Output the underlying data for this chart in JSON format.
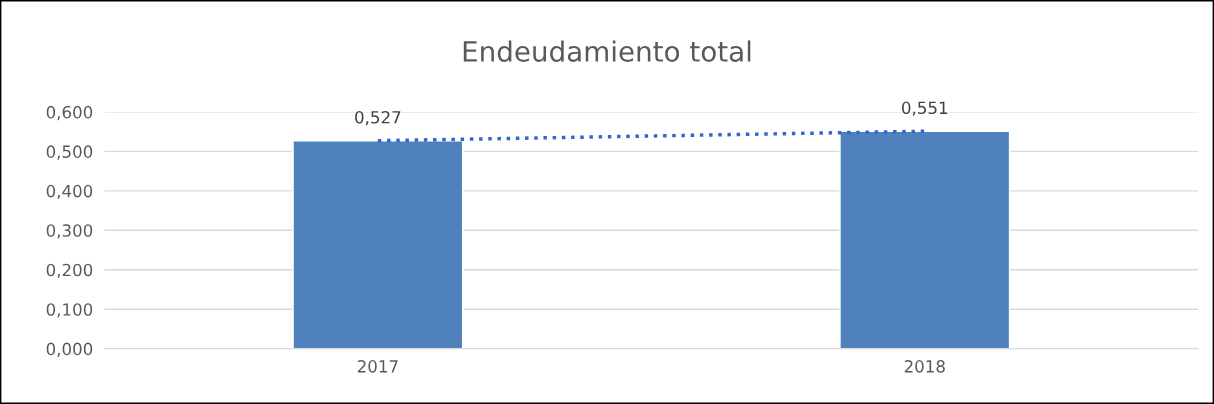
{
  "chart_data": {
    "type": "bar",
    "title": "Endeudamiento total",
    "categories": [
      "2017",
      "2018"
    ],
    "series": [
      {
        "color": "#4f81bd",
        "values": [
          0.527,
          0.551
        ],
        "value_labels": [
          "0,527",
          "0,551"
        ]
      },
      {
        "type": "line",
        "color": "#3366cc",
        "values": [
          0.527,
          0.551
        ],
        "line_style": "dotted"
      }
    ],
    "ylim": [
      0,
      0.6
    ],
    "yticks": [
      {
        "value": 0,
        "label": "0,000"
      },
      {
        "value": 0.1,
        "label": "0,100"
      },
      {
        "value": 0.2,
        "label": "0,200"
      },
      {
        "value": 0.3,
        "label": "0,300"
      },
      {
        "value": 0.4,
        "label": "0,400"
      },
      {
        "value": 0.5,
        "label": "0,500"
      },
      {
        "value": 0.6,
        "label": "0,600"
      }
    ],
    "grid": "y",
    "legend": false
  }
}
